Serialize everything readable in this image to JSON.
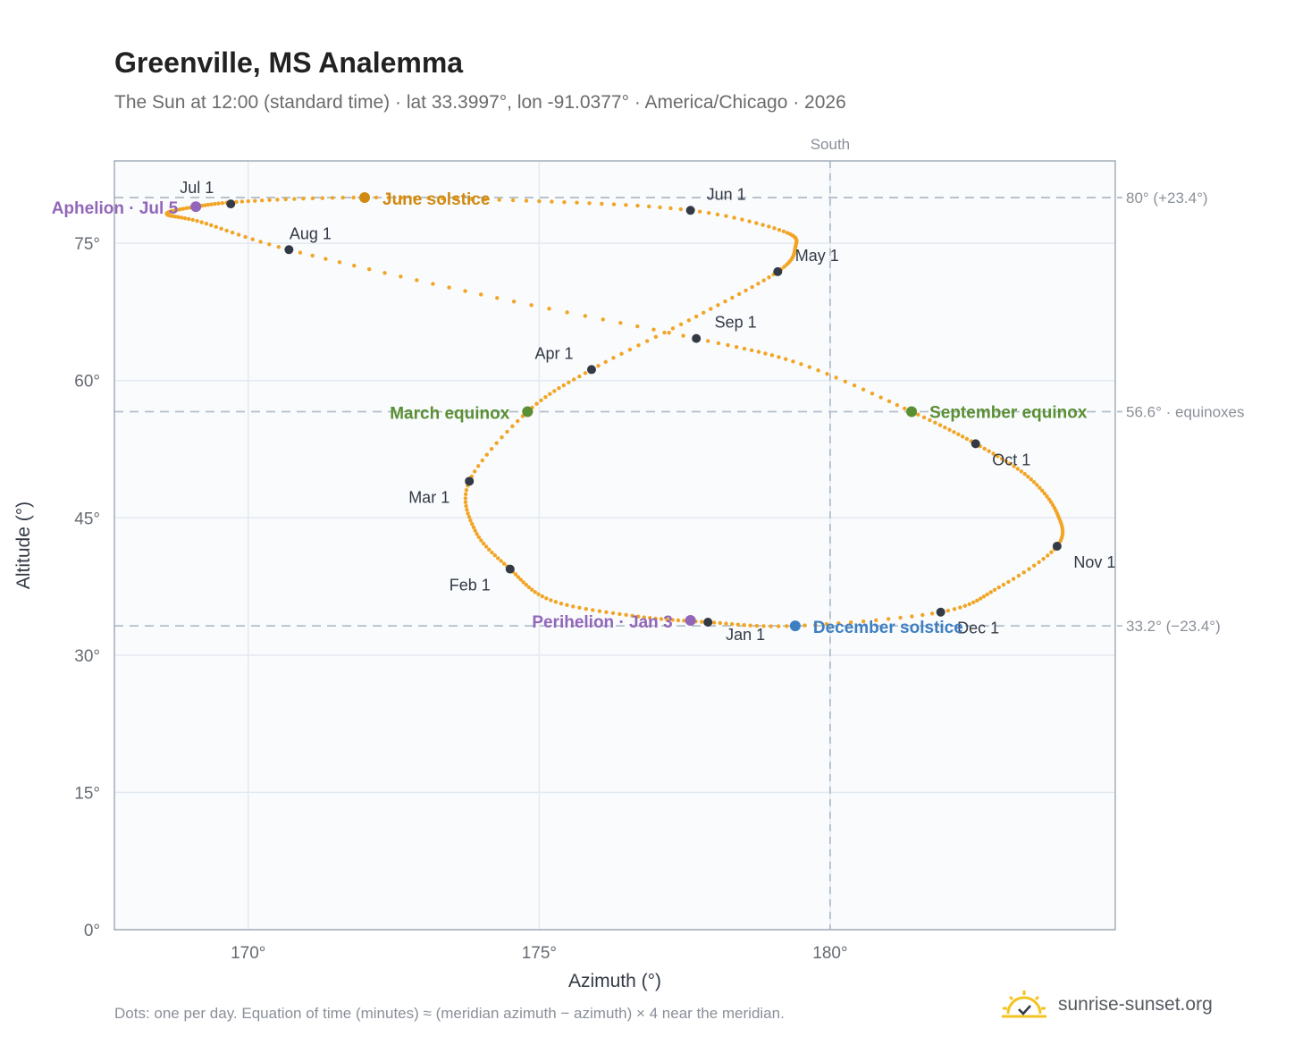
{
  "title": "Greenville, MS Analemma",
  "subtitle": "The Sun at 12:00 (standard time) · lat 33.3997°, lon -91.0377° · America/Chicago · 2026",
  "footnote": "Dots: one per day. Equation of time (minutes) ≈ (meridian azimuth − azimuth) × 4 near the meridian.",
  "brand": {
    "name": "sunrise-sunset.org",
    "icon": "sun-logo-icon"
  },
  "colors": {
    "analemma": "#f2a524",
    "month_marker": "#333a45",
    "june": "#d08a12",
    "equinox": "#5a8f33",
    "december": "#3e7fc1",
    "aphelion": "#9266b8",
    "guide": "#b4bfc9",
    "plot_bg": "#f9fbfd",
    "grid": "#e4eaf1"
  },
  "chart_data": {
    "type": "scatter",
    "xlabel": "Azimuth (°)",
    "ylabel": "Altitude (°)",
    "xlim": [
      167.7,
      184.9
    ],
    "ylim": [
      0,
      84
    ],
    "x_ticks": [
      170,
      175,
      180
    ],
    "x_tick_labels": [
      "170°",
      "175°",
      "180°"
    ],
    "y_ticks": [
      0,
      15,
      30,
      45,
      60,
      75
    ],
    "y_tick_labels": [
      "0°",
      "15°",
      "30°",
      "45°",
      "60°",
      "75°"
    ],
    "grid": true,
    "meridian": {
      "azimuth": 180,
      "label": "South"
    },
    "reference_lines": [
      {
        "altitude": 80.0,
        "label": "80° (+23.4°)"
      },
      {
        "altitude": 56.6,
        "label": "56.6° · equinoxes"
      },
      {
        "altitude": 33.2,
        "label": "33.2° (−23.4°)"
      }
    ],
    "analemma_path": [
      [
        177.9,
        33.6
      ],
      [
        176.6,
        34.3
      ],
      [
        175.2,
        36.0
      ],
      [
        174.5,
        39.4
      ],
      [
        173.9,
        43.6
      ],
      [
        173.8,
        49.0
      ],
      [
        174.8,
        56.6
      ],
      [
        175.9,
        61.2
      ],
      [
        177.7,
        67.0
      ],
      [
        179.1,
        71.9
      ],
      [
        179.4,
        74.5
      ],
      [
        179.2,
        76.3
      ],
      [
        177.6,
        78.6
      ],
      [
        175.0,
        79.6
      ],
      [
        172.0,
        80.0
      ],
      [
        170.0,
        79.6
      ],
      [
        169.1,
        79.0
      ],
      [
        168.6,
        78.2
      ],
      [
        169.2,
        77.3
      ],
      [
        170.7,
        74.3
      ],
      [
        174.0,
        69.4
      ],
      [
        177.7,
        64.6
      ],
      [
        179.5,
        61.8
      ],
      [
        181.4,
        56.6
      ],
      [
        182.5,
        53.1
      ],
      [
        183.4,
        49.5
      ],
      [
        183.9,
        45.5
      ],
      [
        183.9,
        41.9
      ],
      [
        182.9,
        37.4
      ],
      [
        181.9,
        34.7
      ],
      [
        179.4,
        33.2
      ],
      [
        177.9,
        33.6
      ]
    ],
    "month_markers": [
      {
        "label": "Jan 1",
        "az": 177.9,
        "alt": 33.6
      },
      {
        "label": "Feb 1",
        "az": 174.5,
        "alt": 39.4
      },
      {
        "label": "Mar 1",
        "az": 173.8,
        "alt": 49.0
      },
      {
        "label": "Apr 1",
        "az": 175.9,
        "alt": 61.2
      },
      {
        "label": "May 1",
        "az": 179.1,
        "alt": 71.9
      },
      {
        "label": "Jun 1",
        "az": 177.6,
        "alt": 78.6
      },
      {
        "label": "Jul 1",
        "az": 169.7,
        "alt": 79.3
      },
      {
        "label": "Aug 1",
        "az": 170.7,
        "alt": 74.3
      },
      {
        "label": "Sep 1",
        "az": 177.7,
        "alt": 64.6
      },
      {
        "label": "Oct 1",
        "az": 182.5,
        "alt": 53.1
      },
      {
        "label": "Nov 1",
        "az": 183.9,
        "alt": 41.9
      },
      {
        "label": "Dec 1",
        "az": 181.9,
        "alt": 34.7
      }
    ],
    "events": [
      {
        "label": "June solstice",
        "az": 172.0,
        "alt": 80.0,
        "color_key": "june"
      },
      {
        "label": "March equinox",
        "az": 174.8,
        "alt": 56.6,
        "color_key": "equinox"
      },
      {
        "label": "September equinox",
        "az": 181.4,
        "alt": 56.6,
        "color_key": "equinox"
      },
      {
        "label": "December solstice",
        "az": 179.4,
        "alt": 33.2,
        "color_key": "december"
      },
      {
        "label": "Aphelion · Jul 5",
        "az": 169.1,
        "alt": 79.0,
        "color_key": "aphelion"
      },
      {
        "label": "Perihelion · Jan 3",
        "az": 177.6,
        "alt": 33.8,
        "color_key": "aphelion"
      }
    ]
  }
}
